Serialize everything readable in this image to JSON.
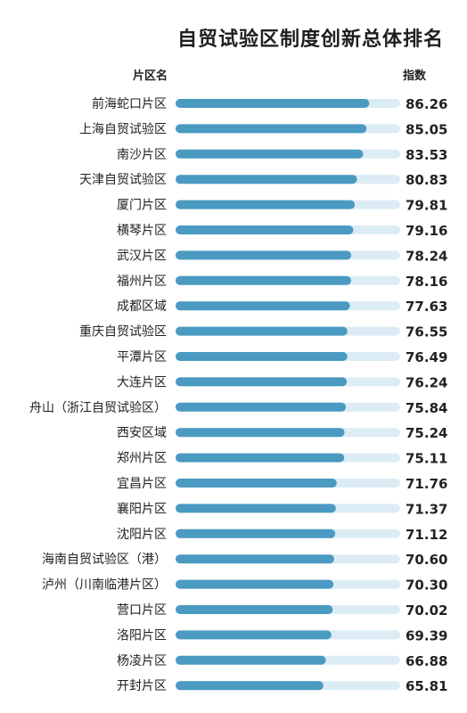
{
  "title": "自贸试验区制度创新总体排名",
  "header": {
    "region": "片区名",
    "index": "指数"
  },
  "colors": {
    "bar": "#4a9ac2",
    "track": "#dcecf4",
    "text": "#222222"
  },
  "chart_data": {
    "type": "bar",
    "orientation": "horizontal",
    "title": "自贸试验区制度创新总体排名",
    "categories": [
      "前海蛇口片区",
      "上海自贸试验区",
      "南沙片区",
      "天津自贸试验区",
      "厦门片区",
      "横琴片区",
      "武汉片区",
      "福州片区",
      "成都区域",
      "重庆自贸试验区",
      "平潭片区",
      "大连片区",
      "舟山（浙江自贸试验区）",
      "西安区域",
      "郑州片区",
      "宜昌片区",
      "襄阳片区",
      "沈阳片区",
      "海南自贸试验区（港）",
      "泸州（川南临港片区）",
      "营口片区",
      "洛阳片区",
      "杨凌片区",
      "开封片区"
    ],
    "values": [
      86.26,
      85.05,
      83.53,
      80.83,
      79.81,
      79.16,
      78.24,
      78.16,
      77.63,
      76.55,
      76.49,
      76.24,
      75.84,
      75.24,
      75.11,
      71.76,
      71.37,
      71.12,
      70.6,
      70.3,
      70.02,
      69.39,
      66.88,
      65.81
    ],
    "value_labels": [
      "86.26",
      "85.05",
      "83.53",
      "80.83",
      "79.81",
      "79.16",
      "78.24",
      "78.16",
      "77.63",
      "76.55",
      "76.49",
      "76.24",
      "75.84",
      "75.24",
      "75.11",
      "71.76",
      "71.37",
      "71.12",
      "70.60",
      "70.30",
      "70.02",
      "69.39",
      "66.88",
      "65.81"
    ],
    "xlim": [
      0,
      100
    ],
    "grid": false,
    "legend": "none"
  }
}
